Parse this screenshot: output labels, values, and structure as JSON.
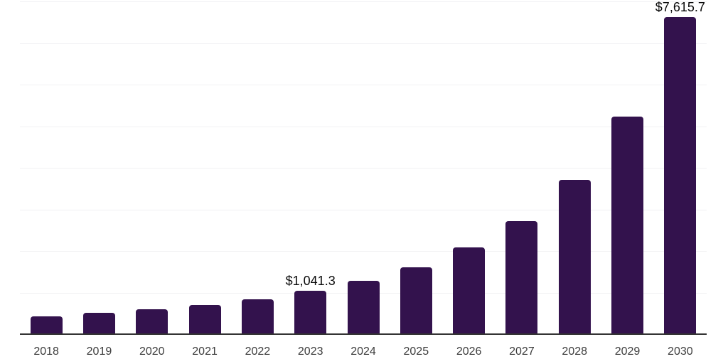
{
  "chart_data": {
    "type": "bar",
    "title": "",
    "xlabel": "",
    "ylabel": "",
    "categories": [
      "2018",
      "2019",
      "2020",
      "2021",
      "2022",
      "2023",
      "2024",
      "2025",
      "2026",
      "2027",
      "2028",
      "2029",
      "2030"
    ],
    "values": [
      430,
      515,
      595,
      700,
      840,
      1041.3,
      1285,
      1600,
      2080,
      2725,
      3705,
      5235,
      7615.7
    ],
    "annotations": [
      {
        "category": "2023",
        "index": 5,
        "label": "$1,041.3"
      },
      {
        "category": "2030",
        "index": 12,
        "label": "$7,615.7"
      }
    ],
    "ylim": [
      0,
      8000
    ],
    "gridline_step": 1000,
    "grid": true,
    "legend": false,
    "y_tick_labels_visible": false,
    "colors": {
      "bar": "#33124D",
      "gridline": "#f1f1f3",
      "axis_line": "#333333",
      "tick_label": "#3d3d3d",
      "value_label": "#0a0a0a",
      "background": "#ffffff"
    }
  }
}
